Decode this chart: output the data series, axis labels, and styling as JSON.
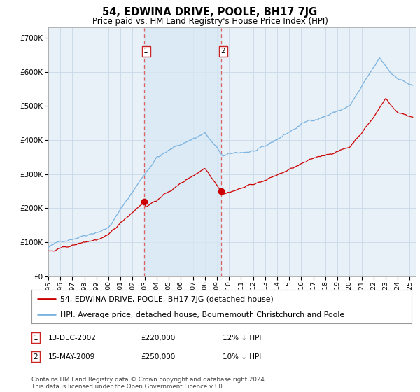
{
  "title": "54, EDWINA DRIVE, POOLE, BH17 7JG",
  "subtitle": "Price paid vs. HM Land Registry's House Price Index (HPI)",
  "ylim": [
    0,
    730000
  ],
  "xlim_start": 1995.0,
  "xlim_end": 2025.5,
  "transaction1_x": 2002.96,
  "transaction1_y": 220000,
  "transaction2_x": 2009.37,
  "transaction2_y": 250000,
  "vline1_x": 2002.96,
  "vline2_x": 2009.37,
  "hpi_color": "#7ab3e0",
  "price_color": "#cc0000",
  "vline_color": "#e06060",
  "fill_color": "#d8e8f5",
  "grid_color": "#c8d8e8",
  "background_color": "#ffffff",
  "plot_bg_color": "#e8f0f8",
  "legend_line1": "54, EDWINA DRIVE, POOLE, BH17 7JG (detached house)",
  "legend_line2": "HPI: Average price, detached house, Bournemouth Christchurch and Poole",
  "table_row1": [
    "1",
    "13-DEC-2002",
    "£220,000",
    "12% ↓ HPI"
  ],
  "table_row2": [
    "2",
    "15-MAY-2009",
    "£250,000",
    "10% ↓ HPI"
  ],
  "footnote": "Contains HM Land Registry data © Crown copyright and database right 2024.\nThis data is licensed under the Open Government Licence v3.0."
}
